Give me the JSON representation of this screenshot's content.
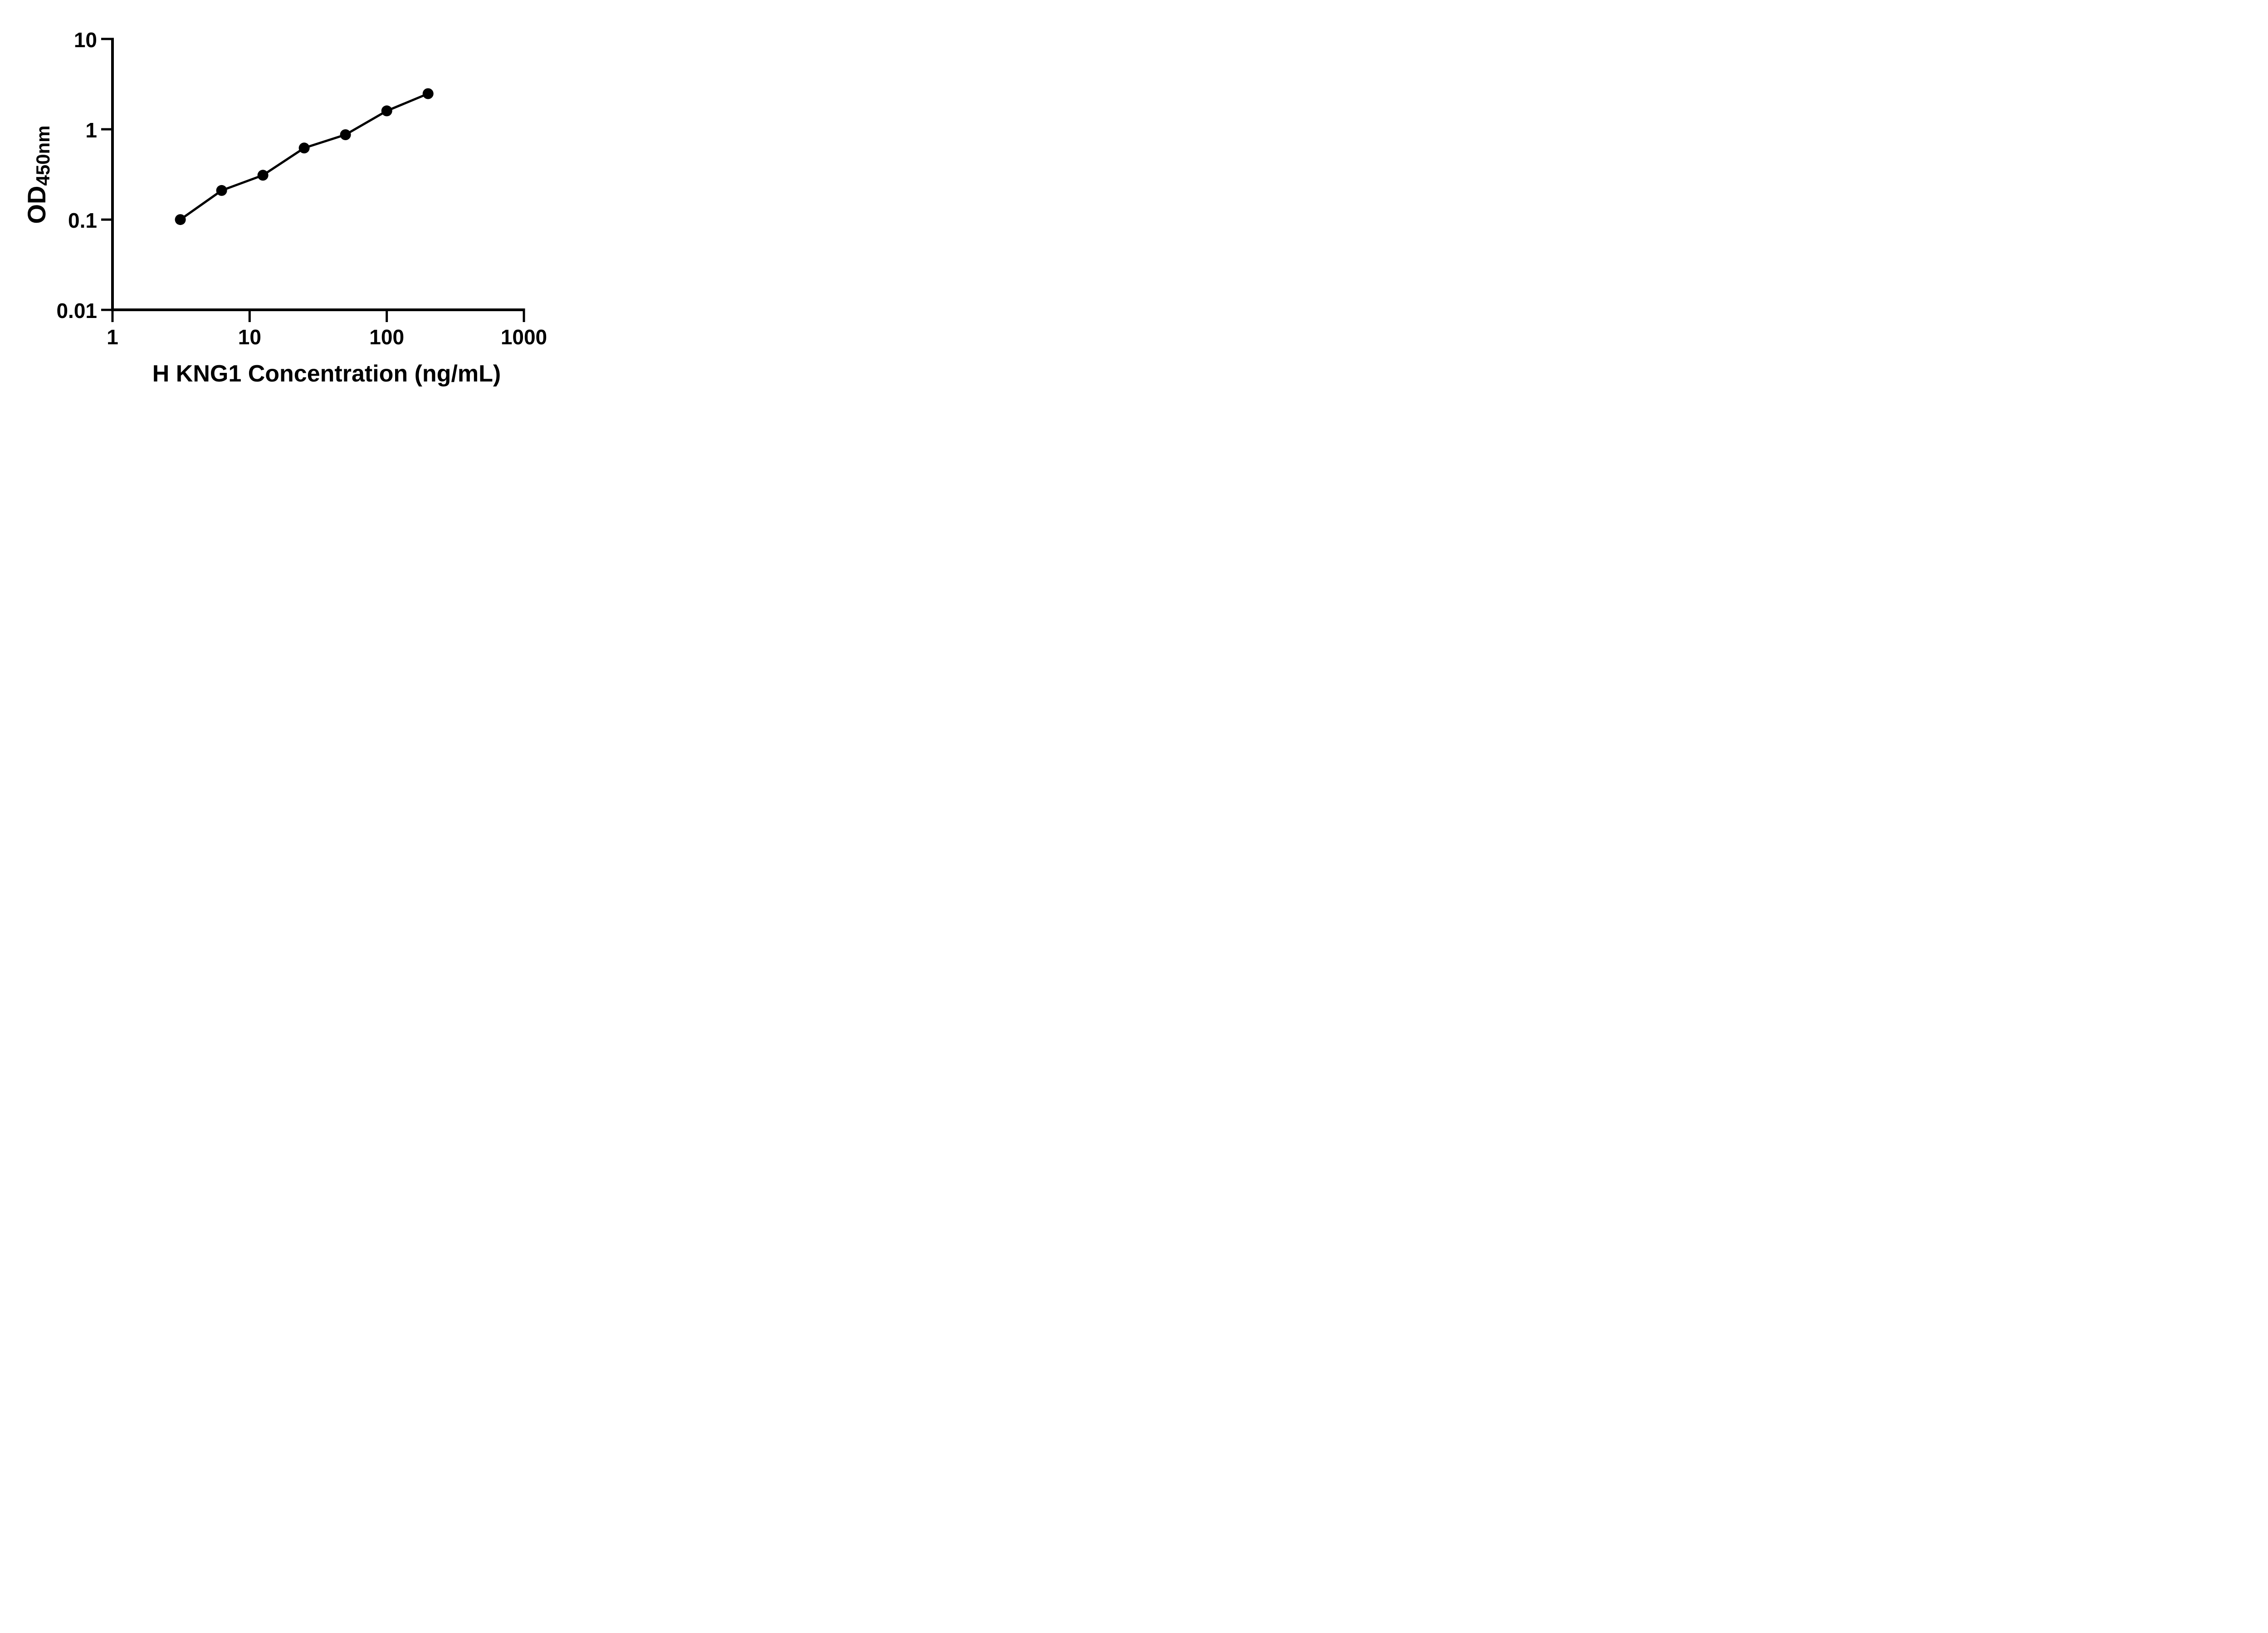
{
  "colors": {
    "ink": "#000000",
    "background": "#ffffff"
  },
  "chart_data": {
    "type": "scatter",
    "title": "",
    "xlabel": "H KNG1 Concentration (ng/mL)",
    "ylabel": "OD450nm",
    "ylabel_parts": {
      "main": "OD",
      "subscript": "450nm"
    },
    "x_scale": "log10",
    "y_scale": "log10",
    "xlim": [
      1,
      1000
    ],
    "ylim": [
      0.01,
      10
    ],
    "x_ticks": {
      "values": [
        1,
        10,
        100,
        1000
      ],
      "labels": [
        "1",
        "10",
        "100",
        "1000"
      ]
    },
    "y_ticks": {
      "values": [
        10,
        1,
        0.1,
        0.01
      ],
      "labels": [
        "10",
        "1",
        "0.1",
        "0.01"
      ]
    },
    "grid": false,
    "legend": "none",
    "marker": {
      "shape": "filled-circle",
      "color": "#000000"
    },
    "line_style": "solid-connecting",
    "x": [
      3.125,
      6.25,
      12.5,
      25,
      50,
      100,
      200
    ],
    "y": [
      0.1,
      0.21,
      0.31,
      0.62,
      0.87,
      1.6,
      2.48
    ]
  }
}
